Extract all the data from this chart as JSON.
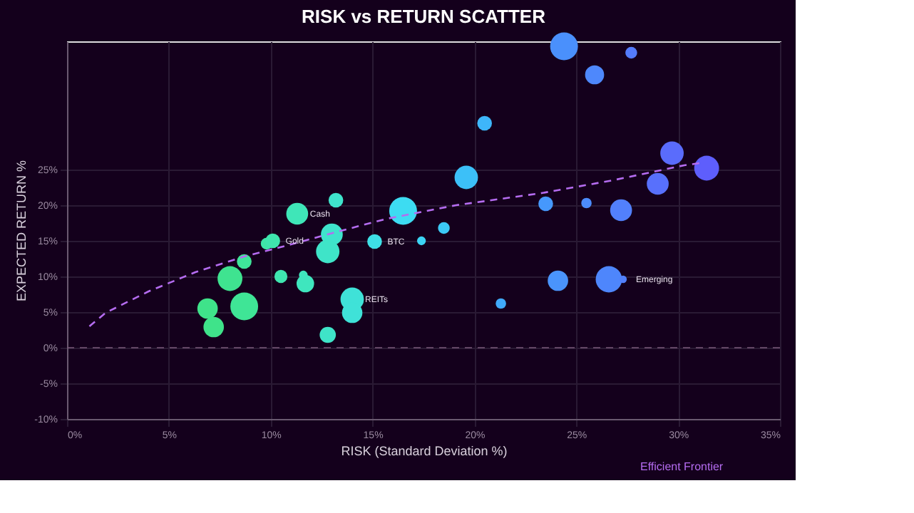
{
  "chart_data": {
    "type": "bubble",
    "title": "RISK vs RETURN SCATTER",
    "xlabel": "RISK (Standard Deviation %)",
    "ylabel": "EXPECTED RETURN %",
    "xlim": [
      0,
      35
    ],
    "ylim": [
      -10,
      43
    ],
    "xticks": [
      {
        "value": 0,
        "label": "0%"
      },
      {
        "value": 5,
        "label": "5%"
      },
      {
        "value": 10,
        "label": "10%"
      },
      {
        "value": 15,
        "label": "15%"
      },
      {
        "value": 20,
        "label": "20%"
      },
      {
        "value": 25,
        "label": "25%"
      },
      {
        "value": 30,
        "label": "30%"
      },
      {
        "value": 35,
        "label": "35%"
      }
    ],
    "yticks": [
      {
        "value": -10,
        "label": "-10%"
      },
      {
        "value": -5,
        "label": "-5%"
      },
      {
        "value": 0,
        "label": "0%"
      },
      {
        "value": 5,
        "label": "5%"
      },
      {
        "value": 10,
        "label": "10%"
      },
      {
        "value": 15,
        "label": "15%"
      },
      {
        "value": 20,
        "label": "20%"
      },
      {
        "value": 25,
        "label": "25%"
      }
    ],
    "grid": true,
    "legend": "bottom right",
    "series": [
      {
        "x": [
          6.9,
          7.2,
          8.0,
          8.7,
          8.7,
          9.8,
          10.1,
          10.5,
          11.3,
          11.6,
          11.7,
          13.2,
          13.0,
          12.8,
          12.8,
          14.0,
          14.0,
          15.1,
          16.5,
          17.4,
          18.5,
          19.6,
          20.5,
          21.3,
          23.5,
          24.1,
          24.4,
          25.5,
          25.9,
          26.6,
          27.2,
          27.3,
          27.7,
          29.0,
          29.7,
          31.4
        ],
        "values": [
          5.5,
          2.9,
          9.7,
          5.8,
          12.1,
          14.6,
          15.0,
          10.0,
          18.8,
          10.2,
          9.0,
          20.7,
          15.9,
          13.5,
          1.8,
          6.8,
          4.9,
          14.9,
          19.2,
          15.0,
          16.8,
          23.9,
          31.5,
          6.2,
          20.2,
          9.4,
          42.3,
          20.3,
          38.3,
          9.6,
          19.3,
          9.6,
          41.4,
          23.0,
          27.3,
          25.2
        ],
        "sizes": [
          0.54,
          0.54,
          0.8,
          1,
          0.28,
          0.18,
          0.28,
          0.22,
          0.62,
          0.1,
          0.4,
          0.28,
          0.62,
          0.71,
          0.34,
          0.71,
          0.54,
          0.28,
          1,
          0.1,
          0.18,
          0.71,
          0.28,
          0.14,
          0.28,
          0.54,
          1,
          0.14,
          0.47,
          0.9,
          0.62,
          0.07,
          0.18,
          0.62,
          0.71,
          0.8
        ],
        "colors": [
          "#3fe38a",
          "#3fe38a",
          "#3fe390",
          "#3fe596",
          "#3fe59a",
          "#3fe6a8",
          "#3fe6ae",
          "#3fe6b0",
          "#3fe6b8",
          "#3fe6bc",
          "#3fe6be",
          "#3fe4cc",
          "#3fe4cc",
          "#3fe4c8",
          "#3fe4c8",
          "#3fe2d8",
          "#3fe2d8",
          "#3ee0e6",
          "#3ddcf2",
          "#3cd4f4",
          "#3ccaf6",
          "#3cc0f8",
          "#3eb6fa",
          "#40aafa",
          "#4698fc",
          "#4a94fc",
          "#4a90fc",
          "#4c8cfc",
          "#4e88fc",
          "#4e86fc",
          "#5280fc",
          "#5280fc",
          "#547cfc",
          "#5870fc",
          "#5a6cfc",
          "#5e5efc"
        ]
      },
      {
        "type": "line",
        "name": "Efficient Frontier",
        "color": "#b56cf0",
        "line_style": "dashed",
        "x": [
          1.1,
          1.9,
          4.0,
          6.3,
          8.7,
          11.0,
          13.3,
          15.7,
          19.1,
          23.3,
          26.8,
          30.3,
          31.3
        ],
        "values": [
          3.0,
          4.9,
          7.9,
          10.6,
          12.8,
          14.5,
          16.3,
          18.1,
          20.0,
          21.7,
          23.5,
          25.6,
          26.0
        ]
      }
    ],
    "ref_lines": [
      {
        "axis": "y",
        "value": 0,
        "color": "#7a5a7a",
        "line_style": "dashed"
      }
    ],
    "annotations": [
      {
        "text": "Cash",
        "x": 11.3,
        "y": 18.8
      },
      {
        "text": "Gold",
        "x": 10.1,
        "y": 15.0
      },
      {
        "text": "BTC",
        "x": 15.1,
        "y": 14.9
      },
      {
        "text": "REITs",
        "x": 14.0,
        "y": 6.8
      },
      {
        "text": "Emerging",
        "x": 27.3,
        "y": 9.6
      }
    ]
  }
}
